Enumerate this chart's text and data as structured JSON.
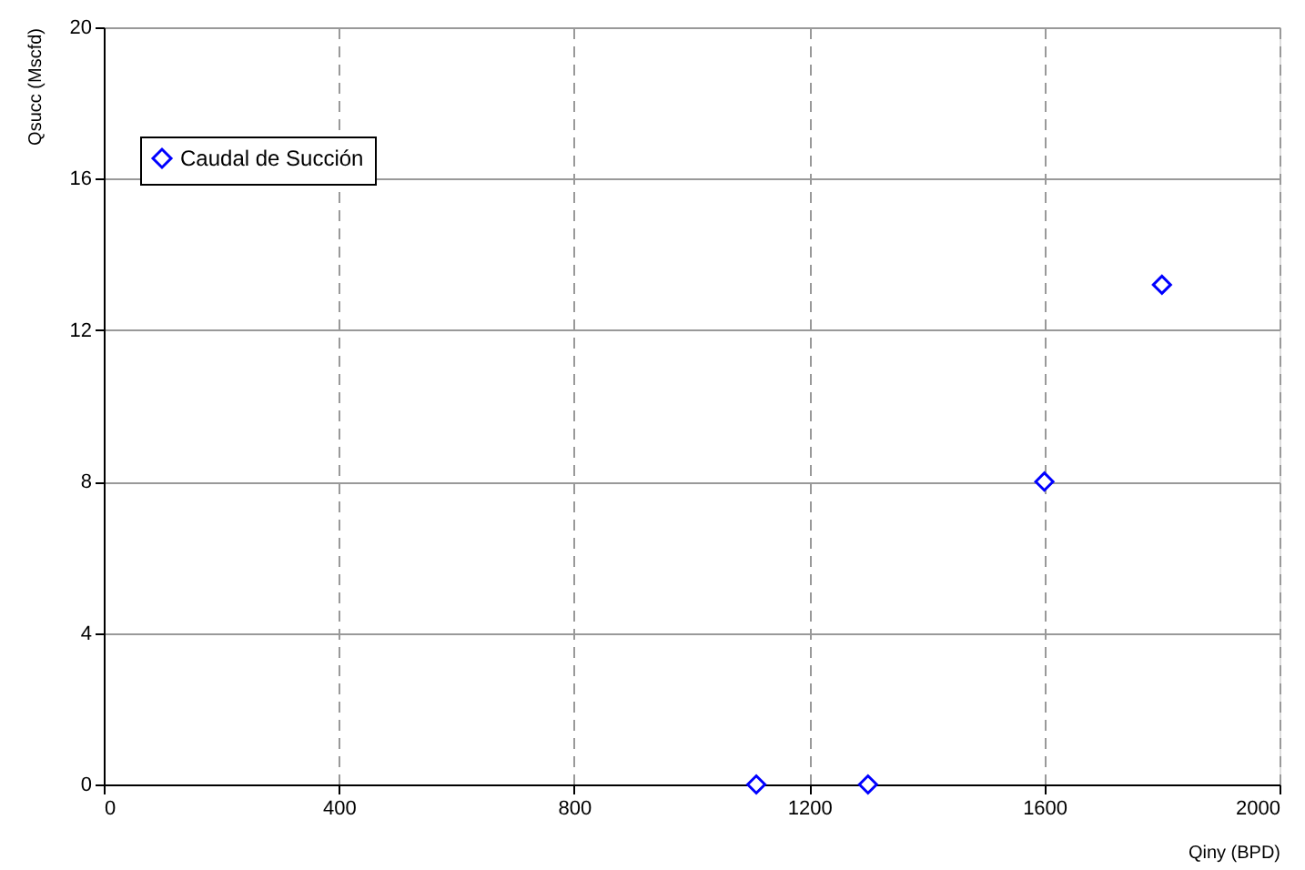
{
  "chart_data": {
    "type": "scatter",
    "xlabel": "Qiny (BPD)",
    "ylabel": "Qsucc (Mscfd)",
    "x": [
      1110,
      1300,
      1600,
      1800
    ],
    "series": [
      {
        "name": "Caudal de Succión",
        "color": "#0000ff",
        "values": [
          0,
          0,
          8,
          13.2
        ]
      }
    ],
    "xlim": [
      0,
      2000
    ],
    "xticks": [
      0,
      400,
      800,
      1200,
      1600,
      2000
    ],
    "ylim": [
      0,
      20
    ],
    "yticks": [
      0,
      4,
      8,
      12,
      16,
      20
    ],
    "grid": true,
    "legend": "top left",
    "marker": "diamond"
  }
}
